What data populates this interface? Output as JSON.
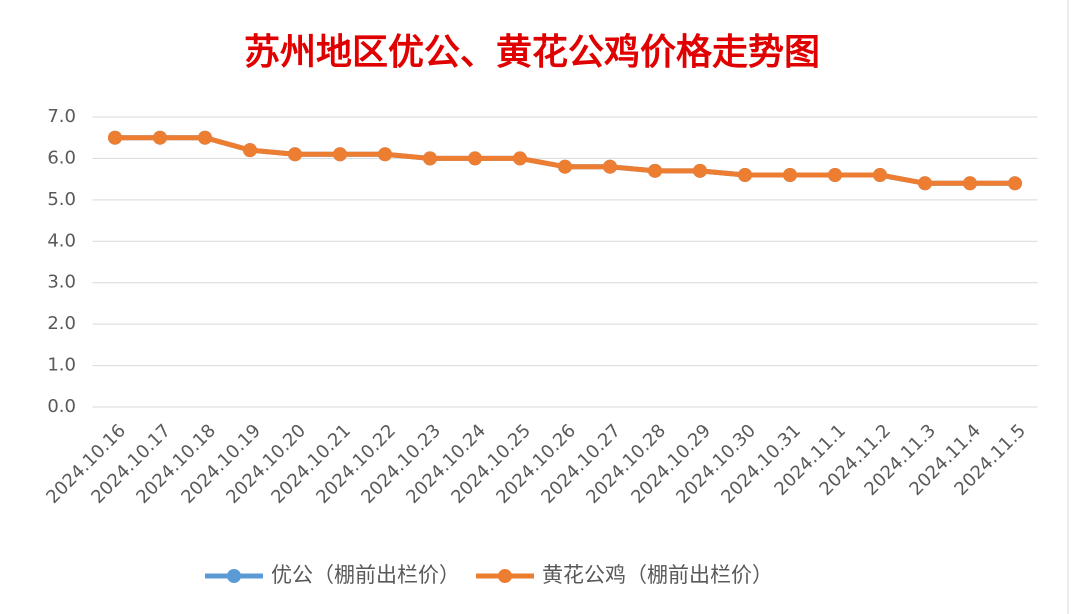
{
  "chart_data": {
    "type": "line",
    "title": "苏州地区优公、黄花公鸡价格走势图",
    "categories": [
      "2024.10.16",
      "2024.10.17",
      "2024.10.18",
      "2024.10.19",
      "2024.10.20",
      "2024.10.21",
      "2024.10.22",
      "2024.10.23",
      "2024.10.24",
      "2024.10.25",
      "2024.10.26",
      "2024.10.27",
      "2024.10.28",
      "2024.10.29",
      "2024.10.30",
      "2024.10.31",
      "2024.11.1",
      "2024.11.2",
      "2024.11.3",
      "2024.11.4",
      "2024.11.5"
    ],
    "series": [
      {
        "name": "优公（棚前出栏价）",
        "color": "#5b9bd5",
        "values": [
          6.5,
          6.5,
          6.5,
          6.2,
          6.1,
          6.1,
          6.1,
          6.0,
          6.0,
          6.0,
          5.8,
          5.8,
          5.7,
          5.7,
          5.6,
          5.6,
          5.6,
          5.6,
          5.4,
          5.4,
          5.4
        ]
      },
      {
        "name": "黄花公鸡（棚前出栏价）",
        "color": "#ed7d31",
        "values": [
          6.5,
          6.5,
          6.5,
          6.2,
          6.1,
          6.1,
          6.1,
          6.0,
          6.0,
          6.0,
          5.8,
          5.8,
          5.7,
          5.7,
          5.6,
          5.6,
          5.6,
          5.6,
          5.4,
          5.4,
          5.4
        ]
      }
    ],
    "ylim": [
      0,
      7
    ],
    "yticks": [
      {
        "value": 0,
        "label": "0.0"
      },
      {
        "value": 1,
        "label": "1.0"
      },
      {
        "value": 2,
        "label": "2.0"
      },
      {
        "value": 3,
        "label": "3.0"
      },
      {
        "value": 4,
        "label": "4.0"
      },
      {
        "value": 5,
        "label": "5.0"
      },
      {
        "value": 6,
        "label": "6.0"
      },
      {
        "value": 7,
        "label": "7.0"
      }
    ],
    "grid": true,
    "legend": "bottom"
  }
}
